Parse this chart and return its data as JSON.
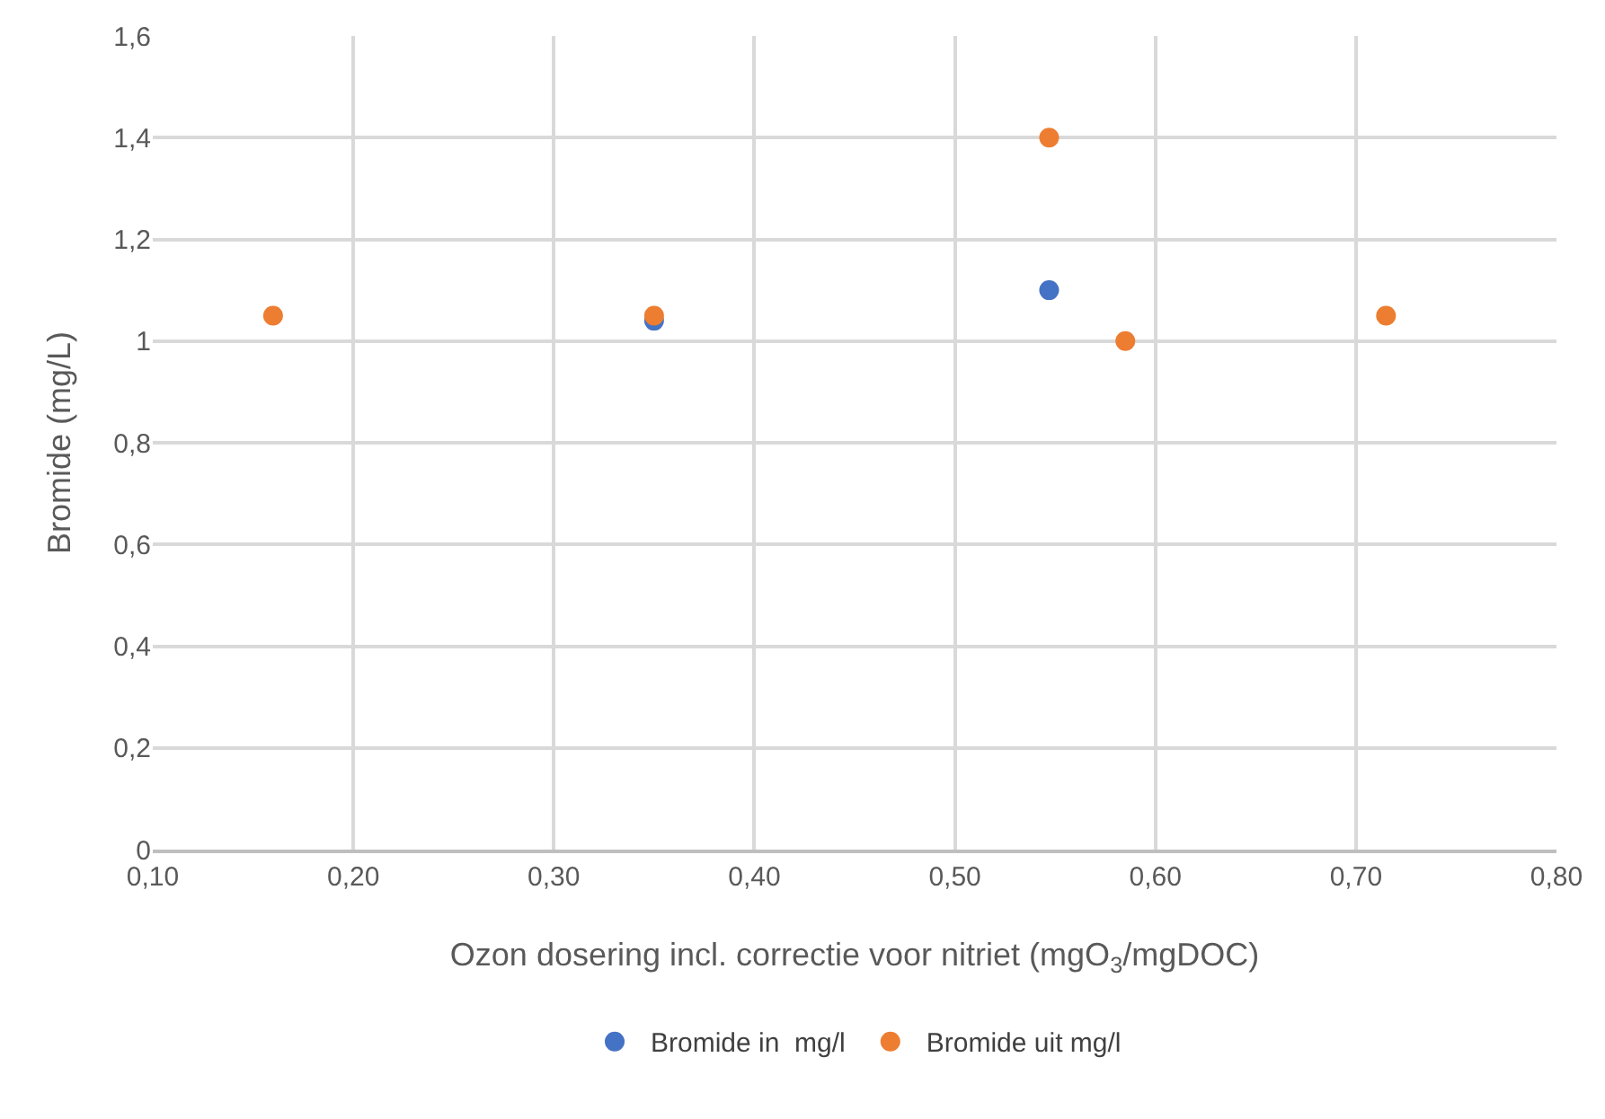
{
  "chart_data": {
    "type": "scatter",
    "xlabel": "Ozon dosering incl. correctie voor nitriet (mgO$_{3}$/mgDOC)",
    "ylabel": "Bromide (mg/L)",
    "series": [
      {
        "name": "Bromide in  mg/l",
        "color": "#4472c4",
        "x": [
          0.35,
          0.547
        ],
        "values": [
          1.04,
          1.1
        ]
      },
      {
        "name": "Bromide uit mg/l",
        "color": "#ed7d31",
        "x": [
          0.16,
          0.35,
          0.547,
          0.585,
          0.715
        ],
        "values": [
          1.05,
          1.05,
          1.4,
          1.0,
          1.05
        ]
      }
    ],
    "xlim": [
      0.1,
      0.8
    ],
    "xticks": [
      {
        "value": 0.1,
        "label": "0,10"
      },
      {
        "value": 0.2,
        "label": "0,20"
      },
      {
        "value": 0.3,
        "label": "0,30"
      },
      {
        "value": 0.4,
        "label": "0,40"
      },
      {
        "value": 0.5,
        "label": "0,50"
      },
      {
        "value": 0.6,
        "label": "0,60"
      },
      {
        "value": 0.7,
        "label": "0,70"
      },
      {
        "value": 0.8,
        "label": "0,80"
      }
    ],
    "ylim": [
      0,
      1.6
    ],
    "yticks": [
      0,
      {
        "value": 0.2,
        "label": "0,2"
      },
      {
        "value": 0.4,
        "label": "0,4"
      },
      {
        "value": 0.6,
        "label": "0,6"
      },
      {
        "value": 0.8,
        "label": "0,8"
      },
      1,
      {
        "value": 1.2,
        "label": "1,2"
      },
      {
        "value": 1.4,
        "label": "1,4"
      },
      {
        "value": 1.6,
        "label": "1,6"
      }
    ],
    "grid": true,
    "legend": "bottom",
    "marker": "circle"
  }
}
